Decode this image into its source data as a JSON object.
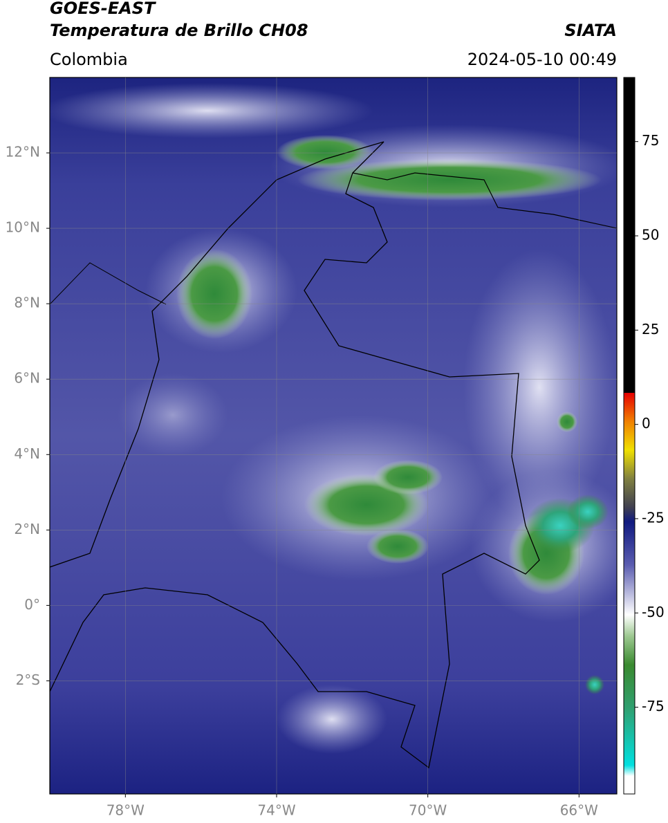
{
  "header": {
    "title": "GOES-EAST",
    "subtitle": "Temperatura de Brillo CH08",
    "region": "Colombia",
    "source": "SIATA",
    "timestamp": "2024-05-10 00:49"
  },
  "map": {
    "lonlim": [
      -80,
      -65
    ],
    "latlim": [
      -5,
      14
    ],
    "lonticks": [
      {
        "value": -78,
        "label": "78°W"
      },
      {
        "value": -74,
        "label": "74°W"
      },
      {
        "value": -70,
        "label": "70°W"
      },
      {
        "value": -66,
        "label": "66°W"
      }
    ],
    "latticks": [
      {
        "value": 12,
        "label": "12°N"
      },
      {
        "value": 10,
        "label": "10°N"
      },
      {
        "value": 8,
        "label": "8°N"
      },
      {
        "value": 6,
        "label": "6°N"
      },
      {
        "value": 4,
        "label": "4°N"
      },
      {
        "value": 2,
        "label": "2°N"
      },
      {
        "value": 0,
        "label": "0°"
      },
      {
        "value": -2,
        "label": "2°S"
      }
    ],
    "grid": true
  },
  "colorbar": {
    "lim": [
      -98,
      92
    ],
    "ticks": [
      75,
      50,
      25,
      0,
      -25,
      -50,
      -75
    ]
  }
}
